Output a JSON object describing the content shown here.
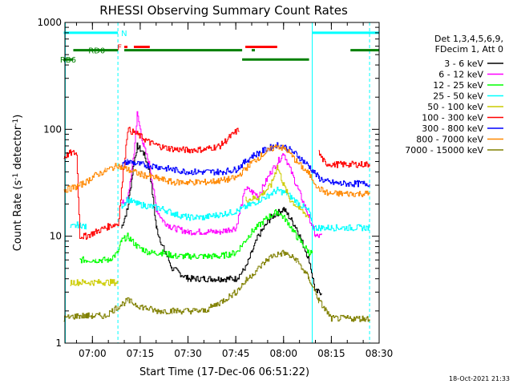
{
  "chart_data": {
    "type": "line",
    "title": "RHESSI Observing Summary Count Rates",
    "xlabel": "Start Time (17-Dec-06 06:51:22)",
    "ylabel_main": "Count Rate (s",
    "ylabel_sup1": "-1",
    "ylabel_mid": " detector",
    "ylabel_sup2": "-1",
    "ylabel_end": ")",
    "y_scale": "log",
    "ylim": [
      1,
      1000
    ],
    "xlim": [
      "06:51:22",
      "08:30:00"
    ],
    "x_ticks": [
      "07:00",
      "07:15",
      "07:30",
      "07:45",
      "08:00",
      "08:15",
      "08:30"
    ],
    "y_ticks": [
      "1",
      "10",
      "100",
      "1000"
    ],
    "legend_header": [
      "Det 1,3,4,5,6,9,",
      "FDecim 1, Att 0"
    ],
    "legend_placement": "right",
    "series": [
      {
        "name": "3 - 6 keV",
        "color": "#000000",
        "x": [
          "06:51",
          "06:56",
          "07:01",
          "07:06",
          "07:09",
          "07:11",
          "07:13",
          "07:14",
          "07:16",
          "07:18",
          "07:20",
          "07:22",
          "07:25",
          "07:30",
          "07:35",
          "07:40",
          "07:45",
          "07:48",
          "07:52",
          "07:56",
          "08:00",
          "08:04",
          "08:08",
          "08:10",
          "08:12"
        ],
        "y": [
          null,
          null,
          null,
          null,
          12,
          18,
          50,
          70,
          60,
          40,
          12,
          8,
          5,
          4,
          4,
          4,
          4,
          5,
          10,
          15,
          18,
          12,
          6,
          3,
          3
        ]
      },
      {
        "name": "6 - 12 keV",
        "color": "#ff00ff",
        "x": [
          "06:51",
          "06:56",
          "07:01",
          "07:06",
          "07:09",
          "07:11",
          "07:13",
          "07:14",
          "07:16",
          "07:18",
          "07:20",
          "07:22",
          "07:25",
          "07:30",
          "07:35",
          "07:40",
          "07:45",
          "07:48",
          "07:52",
          "07:56",
          "08:00",
          "08:04",
          "08:08",
          "08:10",
          "08:12"
        ],
        "y": [
          null,
          null,
          null,
          null,
          20,
          22,
          60,
          140,
          70,
          45,
          18,
          14,
          12,
          11,
          11,
          11,
          12,
          28,
          24,
          40,
          60,
          30,
          15,
          10,
          10
        ]
      },
      {
        "name": "12 - 25 keV",
        "color": "#00ff00",
        "x": [
          "06:51",
          "06:53",
          "06:56",
          "06:58",
          "07:01",
          "07:05",
          "07:08",
          "07:09",
          "07:11",
          "07:14",
          "07:18",
          "07:22",
          "07:26",
          "07:30",
          "07:35",
          "07:40",
          "07:45",
          "07:50",
          "07:55",
          "07:58",
          "08:01",
          "08:04",
          "08:08",
          "08:09",
          "08:11",
          "08:12"
        ],
        "y": [
          null,
          null,
          6,
          6,
          6,
          6,
          7,
          9,
          10,
          8,
          7,
          7,
          6.5,
          6.5,
          6.5,
          6.5,
          7,
          11,
          15,
          17,
          14,
          10,
          7,
          7,
          null,
          null
        ]
      },
      {
        "name": "25 - 50 keV",
        "color": "#00ffff",
        "x": [
          "06:51",
          "06:53",
          "06:56",
          "06:58",
          "07:01",
          "07:05",
          "07:08",
          "07:09",
          "07:11",
          "07:14",
          "07:18",
          "07:22",
          "07:26",
          "07:30",
          "07:35",
          "07:40",
          "07:45",
          "07:50",
          "07:55",
          "07:58",
          "08:01",
          "08:04",
          "08:08",
          "08:09",
          "08:11",
          "08:16",
          "08:22",
          "08:27"
        ],
        "y": [
          null,
          12,
          13,
          12,
          null,
          null,
          null,
          19,
          22,
          20,
          19,
          18,
          16,
          15,
          15,
          16,
          17,
          20,
          24,
          27,
          25,
          21,
          17,
          12,
          12,
          12,
          12,
          12
        ]
      },
      {
        "name": "50 - 100 keV",
        "color": "#cccc00",
        "x": [
          "06:53",
          "06:56",
          "07:00",
          "07:04",
          "07:08",
          "07:09",
          "07:11",
          "07:14",
          "07:18",
          "07:25",
          "07:30",
          "07:35",
          "07:40",
          "07:45",
          "07:48",
          "07:52",
          "07:56",
          "07:58",
          "08:00",
          "08:02",
          "08:05",
          "08:08",
          "08:10"
        ],
        "y": [
          3.7,
          3.7,
          3.7,
          3.7,
          3.7,
          null,
          null,
          null,
          null,
          null,
          null,
          null,
          null,
          null,
          22,
          23,
          30,
          45,
          30,
          22,
          18,
          15,
          null
        ]
      },
      {
        "name": "100 - 300 keV",
        "color": "#ff0000",
        "x": [
          "06:51",
          "06:53",
          "06:55",
          "06:56",
          "06:58",
          "07:01",
          "07:04",
          "07:07",
          "07:08",
          "07:11",
          "07:14",
          "07:18",
          "07:22",
          "07:26",
          "07:30",
          "07:35",
          "07:40",
          "07:44",
          "07:46",
          "07:48",
          "08:10",
          "08:11",
          "08:13",
          "08:16",
          "08:22",
          "08:27"
        ],
        "y": [
          55,
          60,
          60,
          10,
          10,
          11,
          12,
          13,
          13,
          100,
          90,
          75,
          68,
          65,
          64,
          65,
          70,
          90,
          100,
          null,
          null,
          60,
          48,
          47,
          47,
          47
        ]
      },
      {
        "name": "300 - 800 keV",
        "color": "#0000ff",
        "x": [
          "07:09",
          "07:11",
          "07:15",
          "07:20",
          "07:25",
          "07:30",
          "07:35",
          "07:40",
          "07:45",
          "07:50",
          "07:55",
          "07:58",
          "08:01",
          "08:04",
          "08:08",
          "08:11",
          "08:14",
          "08:18",
          "08:22",
          "08:27"
        ],
        "y": [
          46,
          50,
          47,
          45,
          42,
          40,
          40,
          40,
          42,
          56,
          66,
          72,
          67,
          58,
          45,
          35,
          32,
          31,
          31,
          31
        ]
      },
      {
        "name": "800 - 7000 keV",
        "color": "#ff8800",
        "x": [
          "06:51",
          "06:55",
          "06:58",
          "07:00",
          "07:04",
          "07:08",
          "07:09",
          "07:11",
          "07:15",
          "07:20",
          "07:25",
          "07:30",
          "07:35",
          "07:40",
          "07:45",
          "07:50",
          "07:55",
          "07:58",
          "08:01",
          "08:04",
          "08:08",
          "08:11",
          "08:14",
          "08:18",
          "08:22",
          "08:27"
        ],
        "y": [
          27,
          29,
          32,
          36,
          41,
          46,
          44,
          42,
          38,
          35,
          32,
          32,
          32,
          33,
          35,
          49,
          63,
          70,
          64,
          50,
          38,
          28,
          25,
          25,
          25,
          25
        ]
      },
      {
        "name": "7000 - 15000 keV",
        "color": "#808000",
        "x": [
          "06:51",
          "06:55",
          "06:58",
          "07:00",
          "07:04",
          "07:08",
          "07:11",
          "07:15",
          "07:20",
          "07:25",
          "07:30",
          "07:35",
          "07:40",
          "07:45",
          "07:48",
          "07:52",
          "07:56",
          "08:00",
          "08:04",
          "08:08",
          "08:11",
          "08:15",
          "08:20",
          "08:25",
          "08:27"
        ],
        "y": [
          1.7,
          1.8,
          1.8,
          1.8,
          1.8,
          2.2,
          2.5,
          2.2,
          2.0,
          2.0,
          2.0,
          2.0,
          2.4,
          3.0,
          3.8,
          5.0,
          6.5,
          7.0,
          6.0,
          4.0,
          2.5,
          1.7,
          1.7,
          1.7,
          1.7
        ]
      }
    ],
    "state_bars": [
      {
        "label": "N",
        "color": "#00ffff",
        "y": 800,
        "segments": [
          [
            "06:51",
            "07:08"
          ],
          [
            "08:09",
            "08:30"
          ]
        ]
      },
      {
        "label": "F",
        "color": "#ff0000",
        "y": 590,
        "segments": [
          [
            "07:10",
            "07:11"
          ],
          [
            "07:13",
            "07:18"
          ],
          [
            "07:48",
            "07:58"
          ]
        ]
      },
      {
        "label": "RD0",
        "color": "#008000",
        "y": 550,
        "segments": [
          [
            "06:54",
            "07:08"
          ],
          [
            "07:10",
            "07:47"
          ],
          [
            "07:50",
            "07:51"
          ],
          [
            "08:21",
            "08:30"
          ]
        ]
      },
      {
        "label": "RB6",
        "color": "#008000",
        "y": 450,
        "segments": [
          [
            "06:51",
            "06:54"
          ],
          [
            "07:47",
            "08:08"
          ]
        ]
      }
    ],
    "vertical_markers": [
      {
        "time": "06:51:30",
        "style": "solid",
        "color": "#00ffff"
      },
      {
        "time": "07:08",
        "style": "dashed",
        "color": "#00ffff"
      },
      {
        "time": "08:09",
        "style": "solid",
        "color": "#00ffff"
      },
      {
        "time": "08:27",
        "style": "dashed",
        "color": "#00ffff"
      }
    ]
  },
  "footer": {
    "date_stamp": "18-Oct-2021 21:33"
  }
}
